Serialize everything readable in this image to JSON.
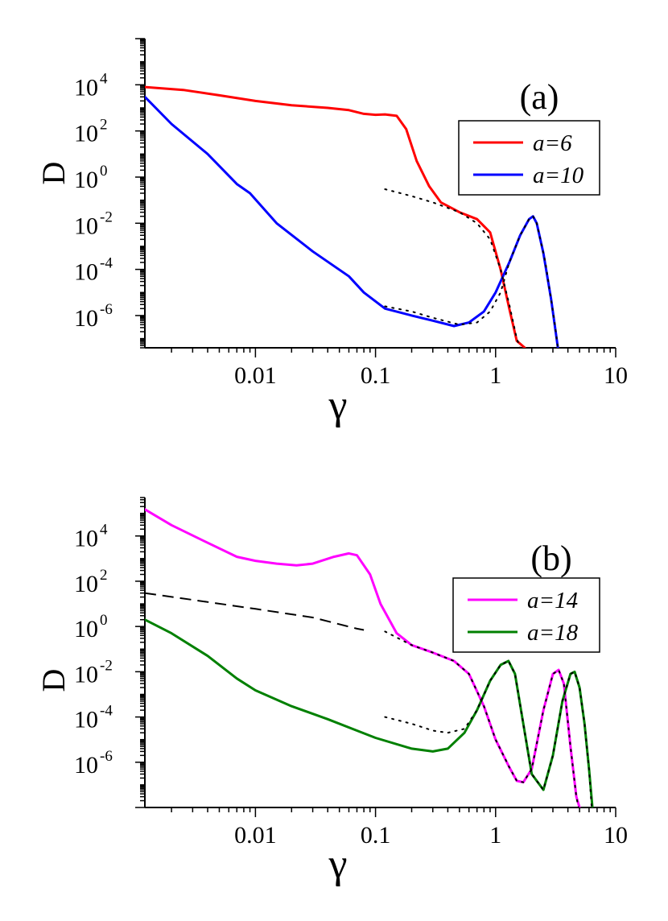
{
  "chart_data": [
    {
      "type": "line",
      "panel_label": "(a)",
      "xlabel": "γ",
      "ylabel": "D",
      "xscale": "log",
      "yscale": "log",
      "xlim": [
        0.0012,
        10
      ],
      "ylim": [
        4e-08,
        1000000
      ],
      "x_ticks": [
        {
          "value": 0.01,
          "label": "0.01"
        },
        {
          "value": 0.1,
          "label": "0.1"
        },
        {
          "value": 1,
          "label": "1"
        },
        {
          "value": 10,
          "label": "10"
        }
      ],
      "y_ticks": [
        {
          "value": 1e-06,
          "label": "10",
          "exp": "-6"
        },
        {
          "value": 0.0001,
          "label": "10",
          "exp": "-4"
        },
        {
          "value": 0.01,
          "label": "10",
          "exp": "-2"
        },
        {
          "value": 1,
          "label": "10",
          "exp": "0"
        },
        {
          "value": 100,
          "label": "10",
          "exp": "2"
        },
        {
          "value": 10000,
          "label": "10",
          "exp": "4"
        }
      ],
      "legend_position": "top-right",
      "series": [
        {
          "name": "a=6",
          "color": "#ff0000",
          "style": "solid",
          "legend": true,
          "points": [
            [
              0.0012,
              8000
            ],
            [
              0.0025,
              6000
            ],
            [
              0.005,
              3500
            ],
            [
              0.01,
              2000
            ],
            [
              0.02,
              1300
            ],
            [
              0.04,
              1000
            ],
            [
              0.06,
              800
            ],
            [
              0.08,
              550
            ],
            [
              0.1,
              500
            ],
            [
              0.12,
              520
            ],
            [
              0.15,
              450
            ],
            [
              0.18,
              120
            ],
            [
              0.22,
              5
            ],
            [
              0.28,
              0.4
            ],
            [
              0.35,
              0.08
            ],
            [
              0.5,
              0.03
            ],
            [
              0.7,
              0.015
            ],
            [
              0.9,
              0.004
            ],
            [
              1.1,
              0.0001
            ],
            [
              1.3,
              2e-06
            ],
            [
              1.5,
              8e-08
            ],
            [
              1.75,
              4e-08
            ]
          ]
        },
        {
          "name": "a=10",
          "color": "#0000ff",
          "style": "solid",
          "legend": true,
          "points": [
            [
              0.0012,
              3000
            ],
            [
              0.002,
              200
            ],
            [
              0.004,
              10
            ],
            [
              0.007,
              0.5
            ],
            [
              0.009,
              0.2
            ],
            [
              0.015,
              0.01
            ],
            [
              0.03,
              0.0006
            ],
            [
              0.06,
              5e-05
            ],
            [
              0.08,
              1e-05
            ],
            [
              0.12,
              2e-06
            ],
            [
              0.2,
              1e-06
            ],
            [
              0.3,
              6e-07
            ],
            [
              0.45,
              3.5e-07
            ],
            [
              0.6,
              5e-07
            ],
            [
              0.8,
              1.5e-06
            ],
            [
              1.0,
              1e-05
            ],
            [
              1.3,
              0.0002
            ],
            [
              1.6,
              0.003
            ],
            [
              1.9,
              0.015
            ],
            [
              2.05,
              0.02
            ],
            [
              2.2,
              0.01
            ],
            [
              2.5,
              0.0005
            ],
            [
              2.9,
              5e-06
            ],
            [
              3.3,
              4e-08
            ]
          ]
        },
        {
          "name": "",
          "color": "#000000",
          "style": "dotted",
          "legend": false,
          "points": [
            [
              0.12,
              0.3
            ],
            [
              0.2,
              0.15
            ],
            [
              0.3,
              0.08
            ],
            [
              0.5,
              0.03
            ],
            [
              0.7,
              0.01
            ],
            [
              0.9,
              0.002
            ],
            [
              1.1,
              0.0001
            ],
            [
              1.3,
              3e-06
            ],
            [
              1.5,
              1e-07
            ],
            [
              1.6,
              4e-08
            ]
          ]
        },
        {
          "name": "",
          "color": "#000000",
          "style": "dotted",
          "legend": false,
          "points": [
            [
              0.12,
              2.5e-06
            ],
            [
              0.2,
              1.5e-06
            ],
            [
              0.3,
              8e-07
            ],
            [
              0.5,
              4e-07
            ],
            [
              0.7,
              5e-07
            ],
            [
              0.9,
              1.5e-06
            ],
            [
              1.1,
              1e-05
            ],
            [
              1.3,
              0.0002
            ],
            [
              1.6,
              0.003
            ],
            [
              1.9,
              0.015
            ],
            [
              2.05,
              0.02
            ],
            [
              2.2,
              0.01
            ],
            [
              2.6,
              0.0002
            ],
            [
              3.1,
              5e-07
            ],
            [
              3.3,
              4e-08
            ]
          ]
        }
      ]
    },
    {
      "type": "line",
      "panel_label": "(b)",
      "xlabel": "γ",
      "ylabel": "D",
      "xscale": "log",
      "yscale": "log",
      "xlim": [
        0.0012,
        10
      ],
      "ylim": [
        1e-08,
        500000
      ],
      "x_ticks": [
        {
          "value": 0.01,
          "label": "0.01"
        },
        {
          "value": 0.1,
          "label": "0.1"
        },
        {
          "value": 1,
          "label": "1"
        },
        {
          "value": 10,
          "label": "10"
        }
      ],
      "y_ticks": [
        {
          "value": 1e-06,
          "label": "10",
          "exp": "-6"
        },
        {
          "value": 0.0001,
          "label": "10",
          "exp": "-4"
        },
        {
          "value": 0.01,
          "label": "10",
          "exp": "-2"
        },
        {
          "value": 1,
          "label": "10",
          "exp": "0"
        },
        {
          "value": 100,
          "label": "10",
          "exp": "2"
        },
        {
          "value": 10000,
          "label": "10",
          "exp": "4"
        }
      ],
      "legend_position": "right",
      "series": [
        {
          "name": "a=14",
          "color": "#ff00ff",
          "style": "solid",
          "legend": true,
          "points": [
            [
              0.0012,
              150000
            ],
            [
              0.002,
              30000
            ],
            [
              0.004,
              5000
            ],
            [
              0.007,
              1200
            ],
            [
              0.01,
              800
            ],
            [
              0.015,
              600
            ],
            [
              0.022,
              500
            ],
            [
              0.03,
              600
            ],
            [
              0.045,
              1200
            ],
            [
              0.06,
              1700
            ],
            [
              0.07,
              1400
            ],
            [
              0.09,
              200
            ],
            [
              0.11,
              10
            ],
            [
              0.15,
              0.5
            ],
            [
              0.2,
              0.15
            ],
            [
              0.3,
              0.07
            ],
            [
              0.45,
              0.03
            ],
            [
              0.6,
              0.008
            ],
            [
              0.8,
              0.0003
            ],
            [
              1.0,
              1e-05
            ],
            [
              1.3,
              6e-07
            ],
            [
              1.5,
              1.5e-07
            ],
            [
              1.7,
              1.3e-07
            ],
            [
              2.0,
              5e-07
            ],
            [
              2.5,
              0.0002
            ],
            [
              3.0,
              0.008
            ],
            [
              3.35,
              0.012
            ],
            [
              3.7,
              0.003
            ],
            [
              4.2,
              5e-06
            ],
            [
              4.7,
              3e-08
            ],
            [
              5.0,
              1e-08
            ]
          ]
        },
        {
          "name": "a=18",
          "color": "#008000",
          "style": "solid",
          "legend": true,
          "points": [
            [
              0.0012,
              2
            ],
            [
              0.002,
              0.5
            ],
            [
              0.004,
              0.05
            ],
            [
              0.007,
              0.005
            ],
            [
              0.01,
              0.0015
            ],
            [
              0.02,
              0.0003
            ],
            [
              0.04,
              8e-05
            ],
            [
              0.07,
              2.5e-05
            ],
            [
              0.1,
              1.2e-05
            ],
            [
              0.2,
              4e-06
            ],
            [
              0.3,
              3e-06
            ],
            [
              0.4,
              4e-06
            ],
            [
              0.55,
              2e-05
            ],
            [
              0.7,
              0.0002
            ],
            [
              0.9,
              0.004
            ],
            [
              1.1,
              0.02
            ],
            [
              1.28,
              0.03
            ],
            [
              1.45,
              0.008
            ],
            [
              1.7,
              5e-05
            ],
            [
              2.0,
              3e-07
            ],
            [
              2.5,
              6e-08
            ],
            [
              3.0,
              2e-06
            ],
            [
              3.6,
              0.0005
            ],
            [
              4.2,
              0.008
            ],
            [
              4.55,
              0.01
            ],
            [
              5.0,
              0.002
            ],
            [
              5.5,
              5e-05
            ],
            [
              6.0,
              5e-07
            ],
            [
              6.4,
              1e-08
            ]
          ]
        },
        {
          "name": "",
          "color": "#000000",
          "style": "dashed",
          "legend": false,
          "points": [
            [
              0.0012,
              30
            ],
            [
              0.003,
              15
            ],
            [
              0.01,
              6
            ],
            [
              0.03,
              2.5
            ],
            [
              0.07,
              0.8
            ],
            [
              0.08,
              0.7
            ]
          ]
        },
        {
          "name": "",
          "color": "#000000",
          "style": "dotted",
          "legend": false,
          "points": [
            [
              0.12,
              0.6
            ],
            [
              0.2,
              0.15
            ],
            [
              0.3,
              0.07
            ],
            [
              0.45,
              0.03
            ],
            [
              0.6,
              0.008
            ],
            [
              0.8,
              0.0003
            ],
            [
              1.0,
              1e-05
            ],
            [
              1.3,
              6e-07
            ],
            [
              1.5,
              1.5e-07
            ],
            [
              1.7,
              1.3e-07
            ],
            [
              2.0,
              5e-07
            ],
            [
              2.5,
              0.0002
            ],
            [
              3.0,
              0.008
            ],
            [
              3.35,
              0.012
            ],
            [
              3.7,
              0.003
            ],
            [
              4.2,
              5e-06
            ],
            [
              4.7,
              3e-08
            ],
            [
              4.9,
              1e-08
            ]
          ]
        },
        {
          "name": "",
          "color": "#000000",
          "style": "dotted",
          "legend": false,
          "points": [
            [
              0.12,
              0.0001
            ],
            [
              0.2,
              5e-05
            ],
            [
              0.3,
              2.5e-05
            ],
            [
              0.4,
              2e-05
            ],
            [
              0.55,
              3e-05
            ],
            [
              0.7,
              0.0002
            ],
            [
              0.9,
              0.004
            ],
            [
              1.1,
              0.02
            ],
            [
              1.28,
              0.03
            ],
            [
              1.45,
              0.008
            ],
            [
              1.7,
              5e-05
            ],
            [
              2.0,
              3e-07
            ],
            [
              2.5,
              6e-08
            ],
            [
              3.0,
              2e-06
            ],
            [
              3.6,
              0.0005
            ],
            [
              4.2,
              0.008
            ],
            [
              4.55,
              0.01
            ],
            [
              5.0,
              0.002
            ],
            [
              5.5,
              5e-05
            ],
            [
              6.0,
              5e-07
            ],
            [
              6.3,
              1e-08
            ]
          ]
        }
      ]
    }
  ]
}
